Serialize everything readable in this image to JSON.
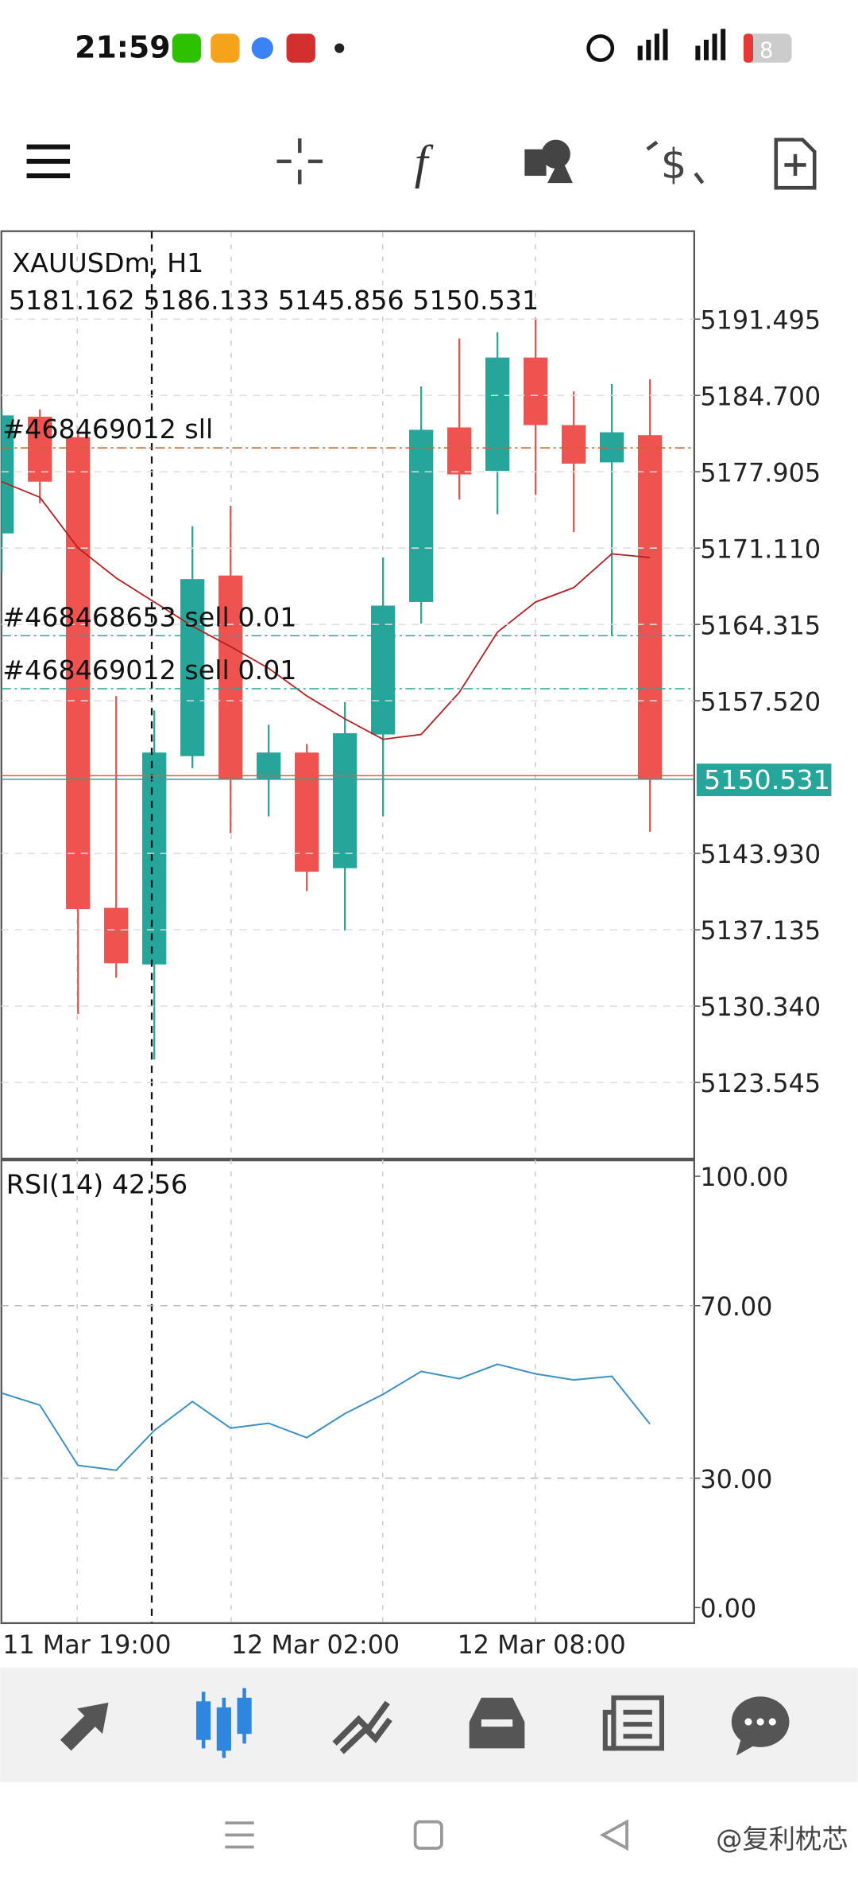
{
  "status_bar": {
    "time": "21:59",
    "battery": "8"
  },
  "chart_data": [
    {
      "type": "candlestick",
      "title": "XAUUSDm, H1",
      "open": [
        5172.42,
        5182.81,
        5180.99,
        5139.09,
        5134.05,
        5152.59,
        5168.67,
        5150.56,
        5152.91,
        5142.62,
        5154.52,
        5166.31,
        5181.85,
        5177.99,
        5188.07,
        5182.06,
        5178.74,
        5181.162
      ],
      "high": [
        5183.46,
        5183.46,
        5181.31,
        5157.95,
        5156.66,
        5173.06,
        5174.88,
        5155.38,
        5153.66,
        5157.41,
        5170.27,
        5185.49,
        5189.78,
        5190.32,
        5191.6,
        5185.06,
        5185.71,
        5186.133
      ],
      "low": [
        5168.99,
        5175.1,
        5129.65,
        5132.87,
        5125.58,
        5151.52,
        5145.73,
        5147.23,
        5140.58,
        5137.05,
        5147.23,
        5164.38,
        5175.42,
        5174.13,
        5175.85,
        5172.53,
        5163.31,
        5145.856
      ],
      "close": [
        5182.92,
        5177.02,
        5138.98,
        5134.15,
        5152.91,
        5168.35,
        5150.56,
        5152.91,
        5142.3,
        5154.63,
        5165.99,
        5181.64,
        5177.67,
        5188.07,
        5182.06,
        5178.63,
        5181.42,
        5150.531
      ],
      "up_color": "#26a69a",
      "down_color": "#ef5350",
      "overlay": {
        "color": "#b22222",
        "values": [
          5177.02,
          5175.63,
          5171.13,
          5168.45,
          5166.31,
          5164.16,
          5162.34,
          5160.41,
          5157.95,
          5155.91,
          5154.09,
          5154.52,
          5158.27,
          5163.63,
          5166.31,
          5167.59,
          5170.6,
          5170.27
        ]
      },
      "order_lines": [
        {
          "label": "#468469012 sll",
          "value": 5180.03,
          "color": "#c8672a"
        },
        {
          "label": "#468468653 sell 0.01",
          "value": 5163.31,
          "color": "#26a69a"
        },
        {
          "label": "#468469012 sell 0.01",
          "value": 5158.59,
          "color": "#26a69a"
        }
      ],
      "ylim": [
        5116.79,
        5199.32
      ],
      "yticks": [
        5191.495,
        {
          "value": 5184.7,
          "label": "5184.700"
        },
        5177.905,
        {
          "value": 5171.11,
          "label": "5171.110"
        },
        5164.315,
        {
          "value": 5157.52,
          "label": "5157.520"
        },
        {
          "value": 5143.93,
          "label": "5143.930"
        },
        5137.135,
        {
          "value": 5130.34,
          "label": "5130.340"
        },
        5123.545
      ],
      "x_labels": [
        "11 Mar 19:00",
        "12 Mar 02:00",
        "12 Mar 08:00"
      ],
      "grid": true
    },
    {
      "type": "line",
      "title": "RSI(14)",
      "color": "#3a8fc4",
      "values": [
        49.72,
        46.93,
        32.96,
        31.84,
        41.06,
        47.77,
        41.62,
        42.74,
        39.39,
        44.97,
        49.44,
        54.75,
        53.07,
        56.42,
        54.19,
        52.79,
        53.63,
        42.56
      ],
      "ylim": [
        -3.6,
        103.6
      ],
      "yticks": [
        {
          "value": 100,
          "label": "100.00"
        },
        {
          "value": 70,
          "label": "70.00"
        },
        {
          "value": 30,
          "label": "30.00"
        },
        {
          "value": 0,
          "label": "0.00"
        }
      ]
    }
  ],
  "watermark": "@复利枕芯"
}
